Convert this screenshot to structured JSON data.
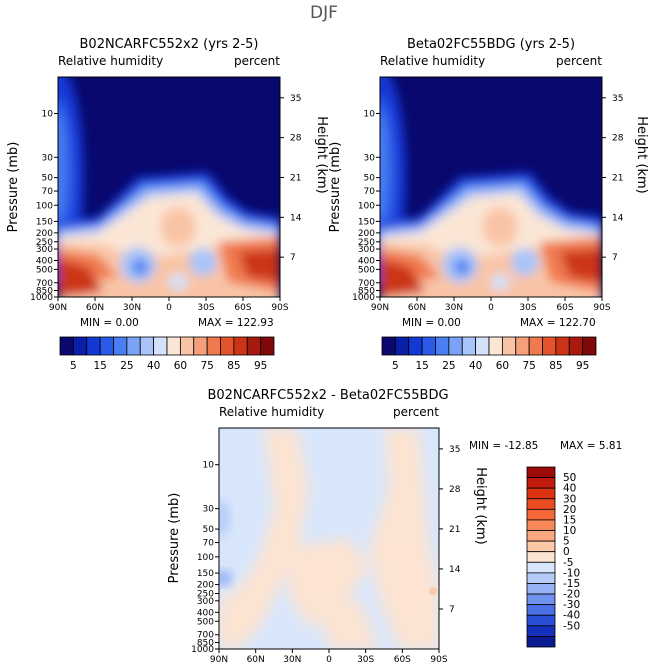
{
  "figure": {
    "title": "DJF"
  },
  "chart_data": [
    {
      "type": "heatmap",
      "title": "B02NCARFC552x2 (yrs 2-5)",
      "subtitle_left": "Relative humidity",
      "subtitle_right": "percent",
      "xlabel": "",
      "ylabel": "Pressure (mb)",
      "ylabel_right": "Height (km)",
      "x_ticks": [
        "90N",
        "60N",
        "30N",
        "0",
        "30S",
        "60S",
        "90S"
      ],
      "y_ticks": [
        "10",
        "30",
        "50",
        "70",
        "100",
        "150",
        "200",
        "250",
        "300",
        "400",
        "500",
        "700",
        "850",
        "1000"
      ],
      "y_right_ticks": [
        "35",
        "28",
        "21",
        "14",
        "7"
      ],
      "y_scale": "log",
      "ylim": [
        1000,
        4
      ],
      "min_label": "MIN =    0.00",
      "max_label": "MAX = 122.93",
      "min": 0.0,
      "max": 122.93,
      "colorbar_levels": [
        5,
        15,
        25,
        40,
        60,
        75,
        85,
        95
      ],
      "colorbar_labels": [
        "5",
        "15",
        "25",
        "40",
        "60",
        "75",
        "85",
        "95"
      ]
    },
    {
      "type": "heatmap",
      "title": "Beta02FC55BDG (yrs 2-5)",
      "subtitle_left": "Relative humidity",
      "subtitle_right": "percent",
      "xlabel": "",
      "ylabel": "Pressure (mb)",
      "ylabel_right": "Height (km)",
      "x_ticks": [
        "90N",
        "60N",
        "30N",
        "0",
        "30S",
        "60S",
        "90S"
      ],
      "y_ticks": [
        "10",
        "30",
        "50",
        "70",
        "100",
        "150",
        "200",
        "250",
        "300",
        "400",
        "500",
        "700",
        "850",
        "1000"
      ],
      "y_right_ticks": [
        "35",
        "28",
        "21",
        "14",
        "7"
      ],
      "y_scale": "log",
      "ylim": [
        1000,
        4
      ],
      "min_label": "MIN =    0.00",
      "max_label": "MAX = 122.70",
      "min": 0.0,
      "max": 122.7,
      "colorbar_levels": [
        5,
        15,
        25,
        40,
        60,
        75,
        85,
        95
      ],
      "colorbar_labels": [
        "5",
        "15",
        "25",
        "40",
        "60",
        "75",
        "85",
        "95"
      ]
    },
    {
      "type": "heatmap",
      "title": "B02NCARFC552x2 - Beta02FC55BDG",
      "subtitle_left": "Relative humidity",
      "subtitle_right": "percent",
      "xlabel": "",
      "ylabel": "Pressure (mb)",
      "ylabel_right": "Height (km)",
      "x_ticks": [
        "90N",
        "60N",
        "30N",
        "0",
        "30S",
        "60S",
        "90S"
      ],
      "y_ticks": [
        "10",
        "30",
        "50",
        "70",
        "100",
        "150",
        "200",
        "250",
        "300",
        "400",
        "500",
        "700",
        "850",
        "1000"
      ],
      "y_right_ticks": [
        "35",
        "28",
        "21",
        "14",
        "7"
      ],
      "y_scale": "log",
      "ylim": [
        1000,
        4
      ],
      "min_label": "MIN = -12.85",
      "max_label": "MAX =    5.81",
      "min": -12.85,
      "max": 5.81,
      "colorbar_levels": [
        50,
        40,
        30,
        20,
        15,
        10,
        5,
        0,
        -5,
        -10,
        -15,
        -20,
        -30,
        -40,
        -50
      ],
      "colorbar_labels": [
        "50",
        "40",
        "30",
        "20",
        "15",
        "10",
        "5",
        "0",
        "-5",
        "-10",
        "-15",
        "-20",
        "-30",
        "-40",
        "-50"
      ]
    }
  ],
  "colors": {
    "rh_scale": [
      "#08086e",
      "#0a1fa8",
      "#1438d4",
      "#2a5ae8",
      "#4a7ef2",
      "#7ba2f6",
      "#a9c4f9",
      "#d3e1fb",
      "#fbe6d6",
      "#f9c4a6",
      "#f5a07a",
      "#f07a50",
      "#e4532c",
      "#cc3418",
      "#a81a0e",
      "#800808"
    ],
    "diff_scale": [
      "#9e0a0a",
      "#c21a0c",
      "#dc3212",
      "#ec4c22",
      "#f4683a",
      "#f7885a",
      "#f9a880",
      "#fbc8a8",
      "#fde4d2",
      "#d8e6fc",
      "#b6ccf8",
      "#94b2f4",
      "#7092ee",
      "#4c70e6",
      "#2a4ed8",
      "#1430bc",
      "#0a1a90"
    ],
    "bg_blue": "#08086e",
    "diff_bg_warm": "#fde4d2",
    "diff_bg_cool": "#d8e6fc"
  }
}
